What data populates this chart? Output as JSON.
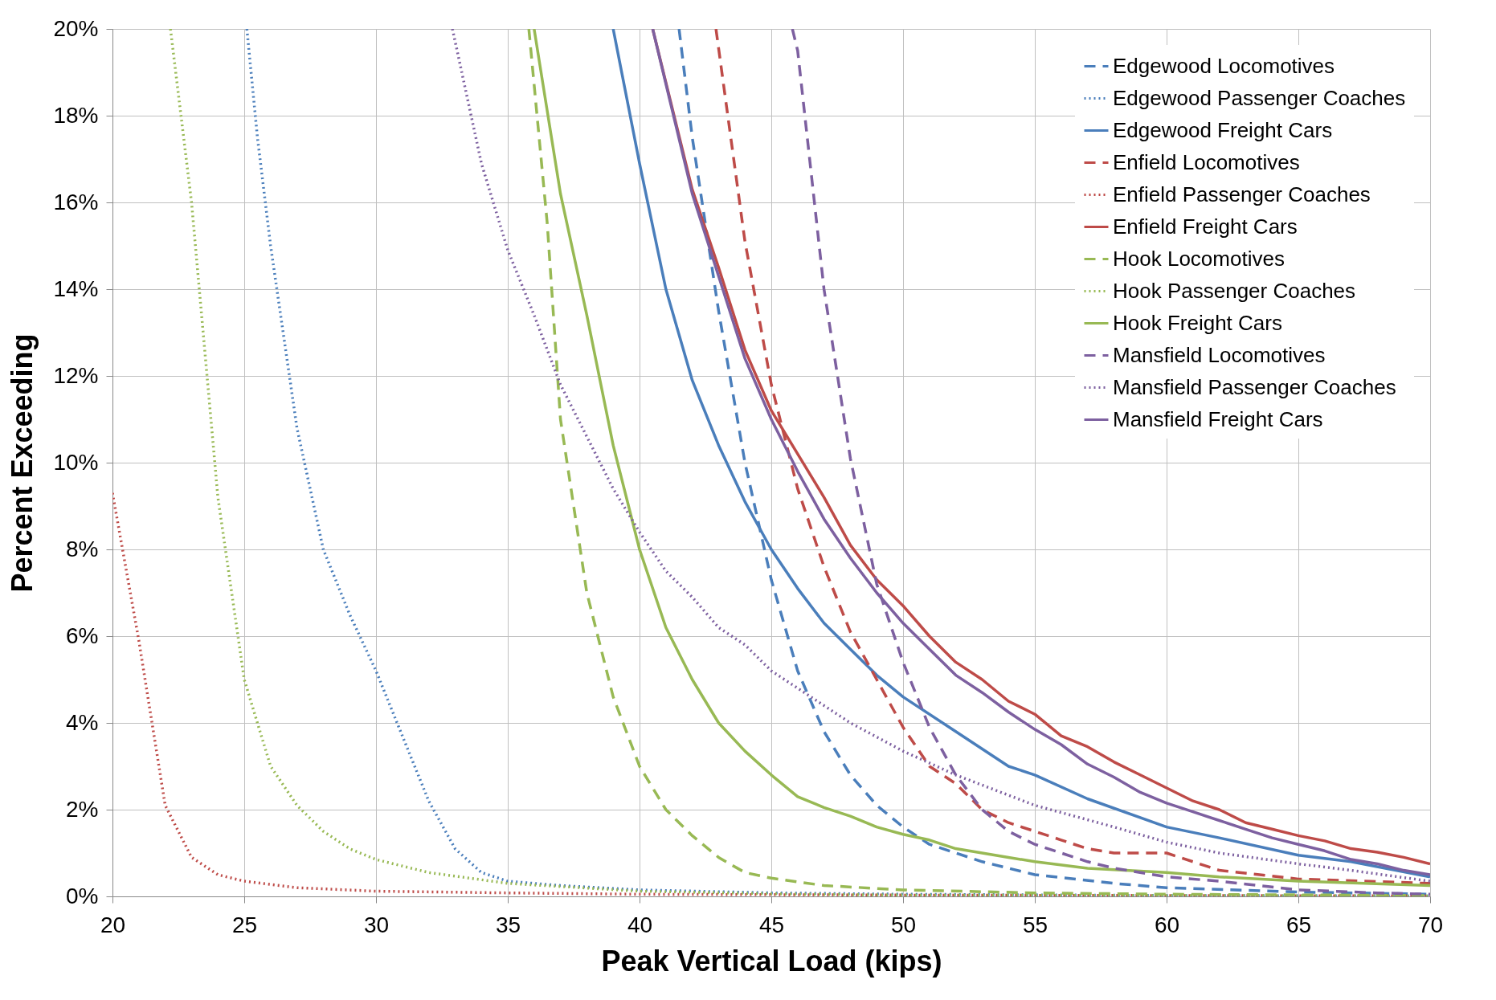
{
  "chart_data": {
    "type": "line",
    "xlabel": "Peak Vertical Load (kips)",
    "ylabel": "Percent Exceeding",
    "xlim": [
      20,
      70
    ],
    "xticks": [
      20,
      25,
      30,
      35,
      40,
      45,
      50,
      55,
      60,
      65,
      70
    ],
    "ylim": [
      0,
      20
    ],
    "yticks": [
      {
        "value": 0,
        "label": "0%"
      },
      {
        "value": 2,
        "label": "2%"
      },
      {
        "value": 4,
        "label": "4%"
      },
      {
        "value": 6,
        "label": "6%"
      },
      {
        "value": 8,
        "label": "8%"
      },
      {
        "value": 10,
        "label": "10%"
      },
      {
        "value": 12,
        "label": "12%"
      },
      {
        "value": 14,
        "label": "14%"
      },
      {
        "value": 16,
        "label": "16%"
      },
      {
        "value": 18,
        "label": "18%"
      },
      {
        "value": 20,
        "label": "20%"
      }
    ],
    "grid": true,
    "legend": "top right",
    "series": [
      {
        "name": "Edgewood Locomotives",
        "color": "#4a7ebb",
        "line_style": "dashed",
        "x": [
          41.5,
          42,
          43,
          44,
          45,
          46,
          47,
          48,
          49,
          50,
          51,
          53,
          55,
          58,
          60,
          65,
          70
        ],
        "values": [
          20,
          17.5,
          13.5,
          10,
          7.3,
          5.2,
          3.8,
          2.8,
          2.1,
          1.6,
          1.2,
          0.8,
          0.5,
          0.3,
          0.2,
          0.1,
          0.05
        ]
      },
      {
        "name": "Edgewood Passenger Coaches",
        "color": "#4a7ebb",
        "line_style": "dotted",
        "x": [
          25.1,
          25.5,
          26,
          27,
          28,
          29,
          30,
          31,
          32,
          33,
          34,
          35,
          37,
          40,
          45,
          50,
          60,
          70
        ],
        "values": [
          20,
          17.5,
          15,
          10.8,
          8,
          6.5,
          5.2,
          3.7,
          2.2,
          1.1,
          0.55,
          0.35,
          0.25,
          0.15,
          0.08,
          0.05,
          0.02,
          0.01
        ]
      },
      {
        "name": "Edgewood Freight Cars",
        "color": "#4a7ebb",
        "line_style": "solid",
        "x": [
          39,
          40,
          41,
          42,
          43,
          44,
          45,
          46,
          47,
          48,
          49,
          50,
          52,
          54,
          55,
          57,
          60,
          62,
          65,
          67,
          70
        ],
        "values": [
          20,
          16.9,
          14,
          11.9,
          10.4,
          9.1,
          8,
          7.1,
          6.3,
          5.7,
          5.1,
          4.6,
          3.8,
          3,
          2.8,
          2.25,
          1.6,
          1.35,
          0.95,
          0.8,
          0.45
        ]
      },
      {
        "name": "Enfield Locomotives",
        "color": "#be4b48",
        "line_style": "dashed",
        "x": [
          42.9,
          44,
          45,
          46,
          47,
          48,
          49,
          50,
          51,
          52,
          53,
          54,
          55,
          56,
          57,
          58,
          60,
          62,
          65,
          70
        ],
        "values": [
          20,
          15.1,
          11.8,
          9.4,
          7.6,
          6.1,
          5,
          3.9,
          3,
          2.6,
          2,
          1.7,
          1.5,
          1.3,
          1.1,
          1,
          1,
          0.6,
          0.4,
          0.3
        ]
      },
      {
        "name": "Enfield Passenger Coaches",
        "color": "#be4b48",
        "line_style": "dotted",
        "x": [
          20,
          21,
          22,
          23,
          24,
          25,
          27,
          30,
          35,
          40,
          50,
          70
        ],
        "values": [
          9.3,
          5.9,
          2.1,
          0.9,
          0.5,
          0.35,
          0.2,
          0.12,
          0.08,
          0.05,
          0.03,
          0.01
        ]
      },
      {
        "name": "Enfield Freight Cars",
        "color": "#be4b48",
        "line_style": "solid",
        "x": [
          40.5,
          42,
          43,
          44,
          45,
          46,
          47,
          48,
          49,
          50,
          51,
          52,
          53,
          54,
          55,
          56,
          57,
          58,
          59,
          60,
          61,
          62,
          63,
          64,
          65,
          66,
          67,
          68,
          69,
          70
        ],
        "values": [
          20,
          16.3,
          14.5,
          12.6,
          11.2,
          10.2,
          9.2,
          8.1,
          7.3,
          6.7,
          6,
          5.4,
          5,
          4.5,
          4.2,
          3.7,
          3.45,
          3.1,
          2.8,
          2.5,
          2.2,
          2,
          1.7,
          1.55,
          1.4,
          1.28,
          1.1,
          1.02,
          0.9,
          0.75
        ]
      },
      {
        "name": "Hook Locomotives",
        "color": "#98b954",
        "line_style": "dashed",
        "x": [
          35.8,
          36.5,
          37,
          38,
          39,
          40,
          41,
          42,
          43,
          44,
          45,
          47,
          50,
          55,
          60,
          70
        ],
        "values": [
          20,
          15.5,
          11,
          7,
          4.6,
          3,
          2,
          1.4,
          0.9,
          0.55,
          0.42,
          0.25,
          0.15,
          0.08,
          0.05,
          0.02
        ]
      },
      {
        "name": "Hook Passenger Coaches",
        "color": "#98b954",
        "line_style": "dotted",
        "x": [
          22.2,
          23,
          24,
          25,
          26,
          27,
          28,
          29,
          30,
          32,
          35,
          40,
          45,
          50,
          70
        ],
        "values": [
          20,
          16,
          9.2,
          5,
          3,
          2.1,
          1.5,
          1.1,
          0.85,
          0.55,
          0.3,
          0.12,
          0.06,
          0.03,
          0.01
        ]
      },
      {
        "name": "Hook Freight Cars",
        "color": "#98b954",
        "line_style": "solid",
        "x": [
          36,
          37,
          38,
          39,
          40,
          41,
          42,
          43,
          44,
          45,
          46,
          47,
          48,
          49,
          50,
          51,
          52,
          53,
          54,
          55,
          57,
          60,
          62,
          65,
          70
        ],
        "values": [
          20,
          16.2,
          13.4,
          10.4,
          8,
          6.2,
          5,
          4,
          3.35,
          2.8,
          2.3,
          2.05,
          1.85,
          1.6,
          1.43,
          1.3,
          1.1,
          1,
          0.9,
          0.8,
          0.65,
          0.55,
          0.45,
          0.35,
          0.25
        ]
      },
      {
        "name": "Mansfield Locomotives",
        "color": "#7d60a0",
        "line_style": "dashed",
        "x": [
          45.8,
          46,
          47,
          48,
          49,
          50,
          51,
          52,
          53,
          54,
          55,
          56,
          57,
          58,
          60,
          62,
          65,
          68,
          70
        ],
        "values": [
          20,
          19.5,
          14,
          10.1,
          7.2,
          5.4,
          3.9,
          2.8,
          2,
          1.5,
          1.2,
          1,
          0.8,
          0.65,
          0.45,
          0.35,
          0.15,
          0.08,
          0.05
        ]
      },
      {
        "name": "Mansfield Passenger Coaches",
        "color": "#7d60a0",
        "line_style": "dotted",
        "x": [
          32.9,
          34,
          35,
          36,
          37,
          38,
          39,
          40,
          41,
          42,
          43,
          44,
          45,
          46,
          47,
          48,
          50,
          52,
          55,
          58,
          60,
          62,
          65,
          67,
          70
        ],
        "values": [
          20,
          16.9,
          14.9,
          13.4,
          11.8,
          10.6,
          9.4,
          8.4,
          7.5,
          6.9,
          6.2,
          5.8,
          5.2,
          4.8,
          4.4,
          4,
          3.35,
          2.8,
          2.1,
          1.6,
          1.25,
          1,
          0.75,
          0.6,
          0.35
        ]
      },
      {
        "name": "Mansfield Freight Cars",
        "color": "#7d60a0",
        "line_style": "solid",
        "x": [
          40.5,
          42,
          43,
          44,
          45,
          46,
          47,
          48,
          49,
          50,
          51,
          52,
          53,
          54,
          55,
          56,
          57,
          58,
          59,
          60,
          61,
          62,
          63,
          64,
          65,
          66,
          67,
          68,
          69,
          70
        ],
        "values": [
          20,
          16.2,
          14.3,
          12.4,
          11,
          9.8,
          8.7,
          7.8,
          7,
          6.3,
          5.7,
          5.1,
          4.7,
          4.25,
          3.85,
          3.5,
          3.05,
          2.75,
          2.4,
          2.15,
          1.95,
          1.75,
          1.55,
          1.35,
          1.2,
          1.05,
          0.85,
          0.75,
          0.6,
          0.5
        ]
      }
    ]
  }
}
